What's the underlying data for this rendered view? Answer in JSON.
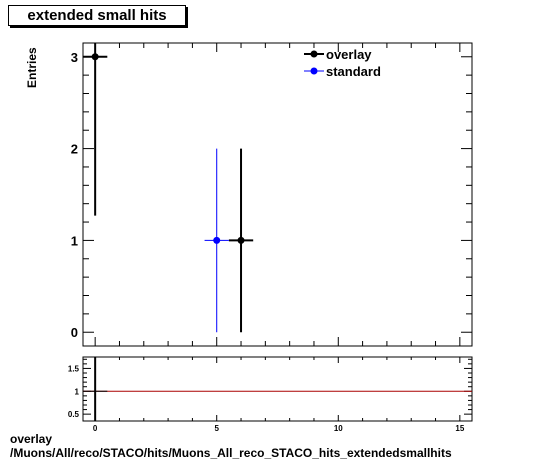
{
  "chart_data": [
    {
      "type": "scatter",
      "title": "extended small hits",
      "ylabel": "Entries",
      "xlim": [
        -0.5,
        15.5
      ],
      "ylim": [
        -0.15,
        3.15
      ],
      "xticks": [
        0,
        5,
        10,
        15
      ],
      "yticks": [
        0,
        1,
        2,
        3
      ],
      "legend_position": "top-right",
      "series": [
        {
          "name": "overlay",
          "color": "#000000",
          "points": [
            {
              "x": 0,
              "y": 3,
              "xerr": 0.5,
              "ylo": 1.27,
              "yhi": 4.73
            },
            {
              "x": 6,
              "y": 1,
              "xerr": 0.5,
              "ylo": 0,
              "yhi": 2
            }
          ]
        },
        {
          "name": "standard",
          "color": "#0000ff",
          "points": [
            {
              "x": 5,
              "y": 1,
              "xerr": 0.5,
              "ylo": 0,
              "yhi": 2
            }
          ]
        }
      ]
    },
    {
      "type": "line",
      "xlim": [
        -0.5,
        15.5
      ],
      "ylim": [
        0.35,
        1.75
      ],
      "xticks": [
        0,
        5,
        10,
        15
      ],
      "yticks": [
        0.5,
        1,
        1.5
      ],
      "ytick_labels": [
        "0.5",
        "1",
        "1.5"
      ],
      "reference_line": {
        "y": 1,
        "color": "#aa0000"
      },
      "points": [
        {
          "x": 0,
          "y": 1,
          "xerr": 0.5
        }
      ]
    }
  ],
  "footer": {
    "line1": "overlay",
    "line2": "/Muons/All/reco/STACO/hits/Muons_All_reco_STACO_hits_extendedsmallhits"
  }
}
